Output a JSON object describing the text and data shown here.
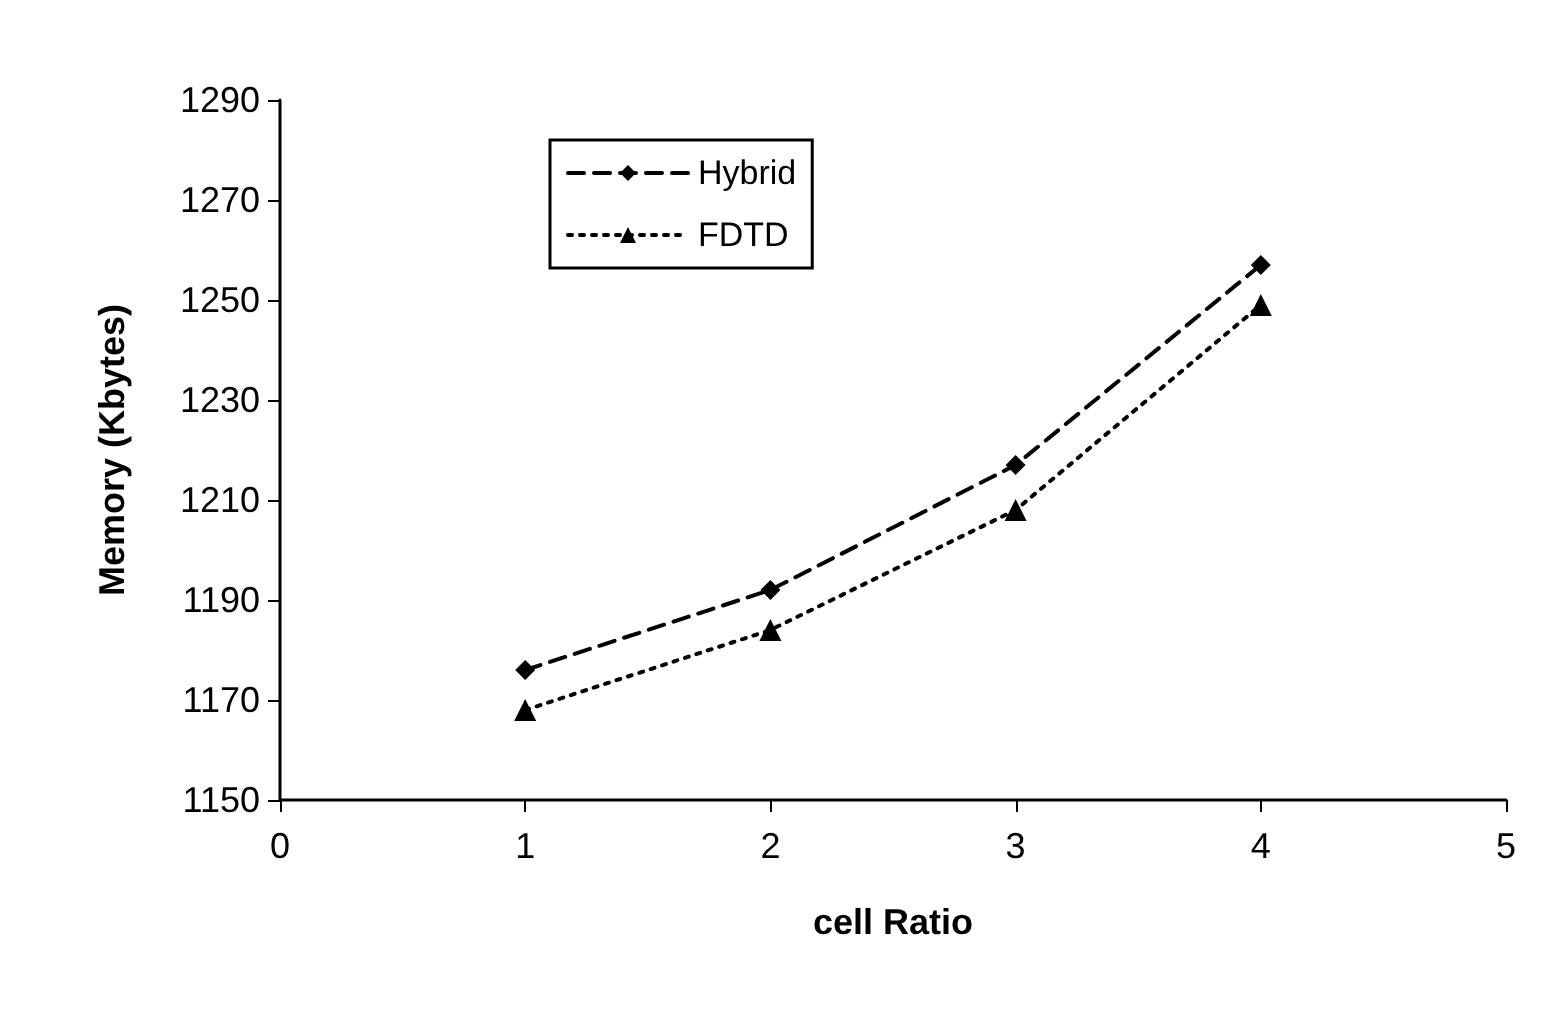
{
  "chart_data": {
    "type": "line",
    "xlabel": "cell Ratio",
    "ylabel": "Memory (Kbytes)",
    "x": [
      1,
      2,
      3,
      4
    ],
    "xlim": [
      0,
      5
    ],
    "xticks": [
      0,
      1,
      2,
      3,
      4,
      5
    ],
    "ylim": [
      1150,
      1290
    ],
    "yticks": [
      1150,
      1170,
      1190,
      1210,
      1230,
      1250,
      1270,
      1290
    ],
    "grid": false,
    "legend": "top left",
    "series": [
      {
        "name": "Hybrid",
        "color": "#000000",
        "values": [
          1176,
          1192,
          1217,
          1257
        ],
        "marker": "diamond",
        "line_style": "dashed"
      },
      {
        "name": "FDTD",
        "color": "#000000",
        "values": [
          1168,
          1184,
          1208,
          1249
        ],
        "marker": "triangle",
        "line_style": "dotted"
      }
    ]
  }
}
